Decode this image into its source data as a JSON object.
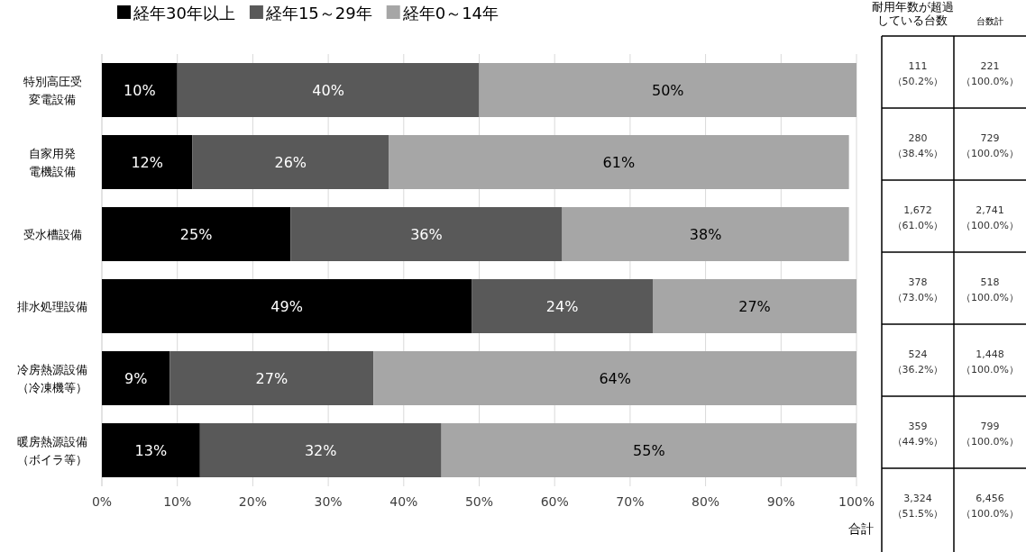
{
  "chart_data": {
    "type": "bar",
    "orientation": "horizontal",
    "stacked": true,
    "categories": [
      "特別高圧受変電設備",
      "自家用発電機設備",
      "受水槽設備",
      "排水処理設備",
      "冷房熱源設備（冷凍機等）",
      "暖房熱源設備（ボイラ等）"
    ],
    "series": [
      {
        "name": "経年30年以上",
        "color": "#000000",
        "values": [
          10,
          12,
          25,
          49,
          9,
          13
        ],
        "value_labels": [
          "10%",
          "12%",
          "25%",
          "49%",
          "9%",
          "13%"
        ]
      },
      {
        "name": "経年15～29年",
        "color": "#595959",
        "values": [
          40,
          26,
          36,
          24,
          27,
          32
        ],
        "value_labels": [
          "40%",
          "26%",
          "36%",
          "24%",
          "27%",
          "32%"
        ]
      },
      {
        "name": "経年0～14年",
        "color": "#a6a6a6",
        "values": [
          50,
          61,
          38,
          27,
          64,
          55
        ],
        "value_labels": [
          "50%",
          "61%",
          "38%",
          "27%",
          "64%",
          "55%"
        ]
      }
    ],
    "xlim": [
      0,
      100
    ],
    "xticks": [
      {
        "value": 0,
        "label": "0%"
      },
      {
        "value": 10,
        "label": "10%"
      },
      {
        "value": 20,
        "label": "20%"
      },
      {
        "value": 30,
        "label": "30%"
      },
      {
        "value": 40,
        "label": "40%"
      },
      {
        "value": 50,
        "label": "50%"
      },
      {
        "value": 60,
        "label": "60%"
      },
      {
        "value": 70,
        "label": "70%"
      },
      {
        "value": 80,
        "label": "80%"
      },
      {
        "value": 90,
        "label": "90%"
      },
      {
        "value": 100,
        "label": "100%"
      }
    ],
    "grid": "x",
    "legend": "top",
    "annotations": [
      "耐用年数が超過している台数",
      "台数計",
      "111\n（50.2%）",
      "221\n（100.0%）",
      "280\n（38.4%）",
      "729\n（100.0%）",
      "1,672\n（61.0%）",
      "2,741\n（100.0%）",
      "378\n（73.0%）",
      "518\n（100.0%）",
      "524\n（36.2%）",
      "1,448\n（100.0%）",
      "359\n（44.9%）",
      "799\n（100.0%）",
      "3,324\n（51.5%）",
      "6,456\n（100.0%）",
      "合計"
    ]
  }
}
